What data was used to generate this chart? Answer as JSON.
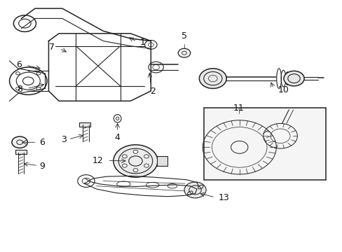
{
  "title": "",
  "bg_color": "#ffffff",
  "fig_width": 4.89,
  "fig_height": 3.6,
  "dpi": 100,
  "line_color": "#222222",
  "label_fontsize": 9,
  "label_color": "#111111"
}
